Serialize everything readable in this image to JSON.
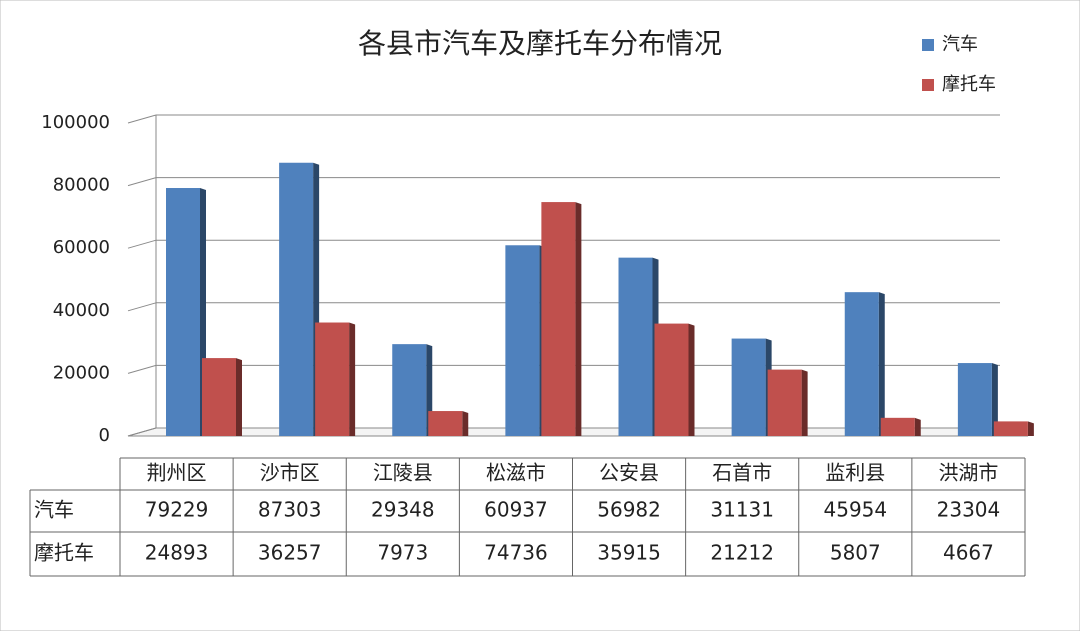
{
  "chart_data": {
    "type": "bar",
    "title": "各县市汽车及摩托车分布情况",
    "categories": [
      "荆州区",
      "沙市区",
      "江陵县",
      "松滋市",
      "公安县",
      "石首市",
      "监利县",
      "洪湖市"
    ],
    "series": [
      {
        "name": "汽车",
        "color": "#4f81bd",
        "values": [
          79229,
          87303,
          29348,
          60937,
          56982,
          31131,
          45954,
          23304
        ]
      },
      {
        "name": "摩托车",
        "color": "#c0504d",
        "values": [
          24893,
          36257,
          7973,
          74736,
          35915,
          21212,
          5807,
          4667
        ]
      }
    ],
    "ylim": [
      0,
      100000
    ],
    "yticks": [
      0,
      20000,
      40000,
      60000,
      80000,
      100000
    ],
    "grid": true,
    "legend": "top-right"
  }
}
